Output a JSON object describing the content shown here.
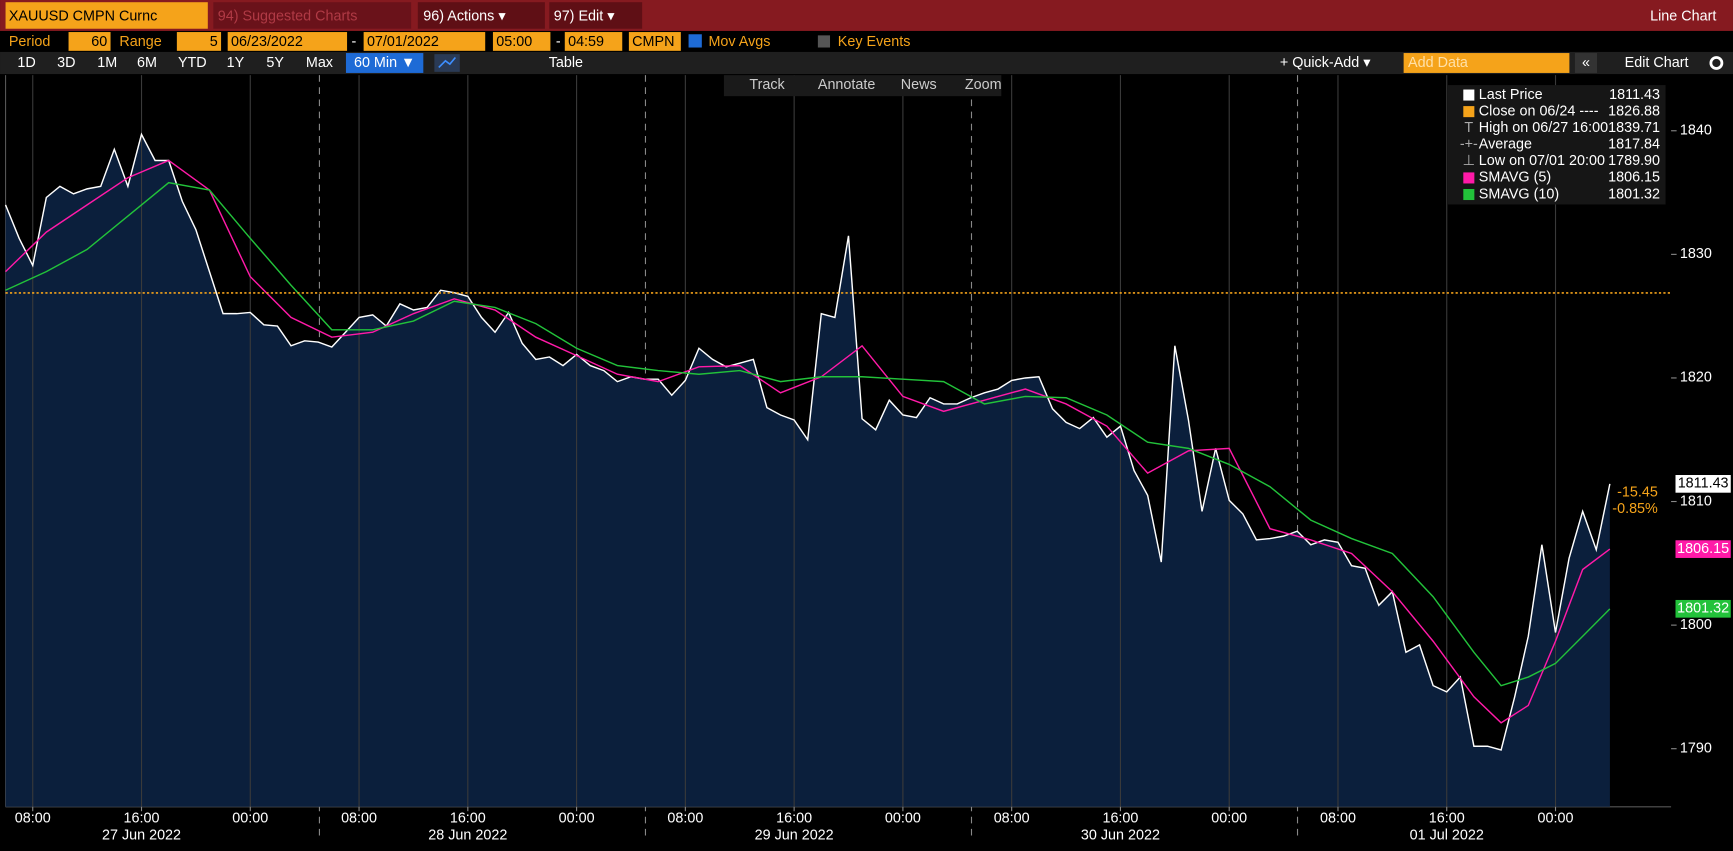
{
  "toolbar": {
    "security": "XAUUSD CMPN Curnc",
    "suggested": "94) Suggested Charts",
    "actions": "96) Actions ▾",
    "edit": "97) Edit ▾",
    "chart_type": "Line Chart",
    "period_label": "Period",
    "period": "60",
    "range_label": "Range",
    "range": "5",
    "start_date": "06/23/2022",
    "end_date": "07/01/2022",
    "separator": "-",
    "start_time": "05:00",
    "end_time": "04:59",
    "source": "CMPN",
    "mov_avgs": "Mov Avgs",
    "key_events": "Key Events",
    "ranges": [
      "1D",
      "3D",
      "1M",
      "6M",
      "YTD",
      "1Y",
      "5Y",
      "Max"
    ],
    "interval": "60 Min ▼",
    "table": "Table",
    "quick_add": "+ Quick-Add ▾",
    "add_data": "Add Data",
    "edit_chart": "Edit Chart",
    "tools": [
      "Track",
      "Annotate",
      "News",
      "Zoom"
    ]
  },
  "chart_data": {
    "type": "line",
    "xlim": [
      0,
      122.5
    ],
    "ylim": [
      1785.3,
      1844.5
    ],
    "yticks": [
      1790,
      1800,
      1810,
      1820,
      1830,
      1840
    ],
    "xticks": [
      {
        "value": 2,
        "label": "08:00"
      },
      {
        "value": 10,
        "label": "16:00"
      },
      {
        "value": 18,
        "label": "00:00"
      },
      {
        "value": 26,
        "label": "08:00"
      },
      {
        "value": 34,
        "label": "16:00"
      },
      {
        "value": 42,
        "label": "00:00"
      },
      {
        "value": 50,
        "label": "08:00"
      },
      {
        "value": 58,
        "label": "16:00"
      },
      {
        "value": 66,
        "label": "00:00"
      },
      {
        "value": 74,
        "label": "08:00"
      },
      {
        "value": 82,
        "label": "16:00"
      },
      {
        "value": 90,
        "label": "00:00"
      },
      {
        "value": 98,
        "label": "08:00"
      },
      {
        "value": 106,
        "label": "16:00"
      },
      {
        "value": 114,
        "label": "00:00"
      }
    ],
    "xdates": [
      {
        "value": 10,
        "label": "27 Jun 2022"
      },
      {
        "value": 34,
        "label": "28 Jun 2022"
      },
      {
        "value": 58,
        "label": "29 Jun 2022"
      },
      {
        "value": 82,
        "label": "30 Jun 2022"
      },
      {
        "value": 106,
        "label": "01 Jul 2022"
      }
    ],
    "series": [
      {
        "name": "Last Price",
        "color": "#ffffff",
        "area": "#0b1f3c",
        "values": [
          1834.0,
          1831.3,
          1829.1,
          1834.6,
          1835.5,
          1834.9,
          1835.3,
          1835.5,
          1838.5,
          1835.5,
          1839.71,
          1837.6,
          1837.6,
          1834.3,
          1832.0,
          1828.6,
          1825.2,
          1825.2,
          1825.3,
          1824.3,
          1824.2,
          1822.6,
          1823.0,
          1822.9,
          1822.5,
          1823.7,
          1824.9,
          1825.1,
          1824.2,
          1826.0,
          1825.5,
          1825.7,
          1827.1,
          1826.9,
          1826.6,
          1824.9,
          1823.7,
          1825.3,
          1822.8,
          1821.5,
          1821.7,
          1821.0,
          1821.9,
          1821.0,
          1820.6,
          1819.7,
          1820.1,
          1819.9,
          1819.9,
          1818.6,
          1819.8,
          1822.4,
          1821.5,
          1820.9,
          1821.2,
          1821.5,
          1817.6,
          1817.0,
          1816.6,
          1815.0,
          1825.2,
          1824.9,
          1831.5,
          1816.7,
          1815.8,
          1818.2,
          1817.0,
          1816.8,
          1818.4,
          1817.9,
          1817.9,
          1818.4,
          1818.8,
          1819.1,
          1819.8,
          1820.0,
          1820.1,
          1817.5,
          1816.4,
          1815.9,
          1816.8,
          1815.2,
          1816.1,
          1812.5,
          1810.5,
          1805.1,
          1822.6,
          1816.6,
          1809.2,
          1814.3,
          1810.1,
          1809.0,
          1806.9,
          1807.0,
          1807.2,
          1807.6,
          1806.5,
          1806.9,
          1806.7,
          1804.8,
          1804.6,
          1801.6,
          1802.7,
          1797.8,
          1798.4,
          1795.1,
          1794.6,
          1795.8,
          1790.2,
          1790.2,
          1789.9,
          1794.2,
          1799.1,
          1806.5,
          1799.4,
          1805.4,
          1809.2,
          1806.1,
          1811.43
        ]
      },
      {
        "name": "SMAVG (5)",
        "color": "#ff1aa8",
        "x": [
          0,
          3,
          6,
          9,
          12,
          15,
          18,
          21,
          24,
          27,
          30,
          33,
          36,
          39,
          42,
          45,
          48,
          51,
          54,
          57,
          60,
          63,
          66,
          69,
          72,
          75,
          78,
          81,
          84,
          87,
          90,
          93,
          96,
          99,
          102,
          105,
          108,
          110,
          112,
          114,
          116,
          118
        ],
        "values": [
          1828.6,
          1831.8,
          1834.0,
          1836.2,
          1837.6,
          1835.2,
          1828.2,
          1824.9,
          1823.3,
          1823.7,
          1825.2,
          1826.4,
          1825.5,
          1823.3,
          1821.8,
          1820.3,
          1819.7,
          1820.9,
          1821.0,
          1818.8,
          1820.1,
          1822.6,
          1818.5,
          1817.3,
          1818.2,
          1819.1,
          1817.9,
          1816.1,
          1812.3,
          1814.1,
          1814.3,
          1807.8,
          1806.9,
          1805.8,
          1802.7,
          1798.7,
          1794.2,
          1792.1,
          1793.5,
          1798.7,
          1804.5,
          1806.15
        ]
      },
      {
        "name": "SMAVG (10)",
        "color": "#22c23a",
        "x": [
          0,
          3,
          6,
          9,
          12,
          15,
          18,
          21,
          24,
          27,
          30,
          33,
          36,
          39,
          42,
          45,
          48,
          51,
          54,
          57,
          60,
          63,
          66,
          69,
          72,
          75,
          78,
          81,
          84,
          87,
          90,
          93,
          96,
          99,
          102,
          105,
          108,
          110,
          112,
          114,
          116,
          118
        ],
        "values": [
          1827.1,
          1828.6,
          1830.4,
          1833.1,
          1835.8,
          1835.2,
          1831.3,
          1827.5,
          1823.9,
          1823.9,
          1824.6,
          1826.2,
          1825.7,
          1824.4,
          1822.4,
          1821.0,
          1820.6,
          1820.3,
          1820.6,
          1819.7,
          1820.1,
          1820.1,
          1819.9,
          1819.7,
          1817.9,
          1818.5,
          1818.4,
          1817.0,
          1814.8,
          1814.3,
          1813.0,
          1811.2,
          1808.5,
          1807.0,
          1805.8,
          1802.3,
          1797.8,
          1795.1,
          1795.8,
          1796.9,
          1799.1,
          1801.32
        ]
      }
    ],
    "stats": [
      {
        "name": "Close on 06/24 ----",
        "value": 1826.88,
        "color": "#f5a31a"
      },
      {
        "name": "High on 06/27 16:00",
        "value": 1839.71
      },
      {
        "name": "Average",
        "value": 1817.84
      },
      {
        "name": "Low on 07/01 20:00",
        "value": 1789.9,
        "label": "1789.90"
      }
    ],
    "change": {
      "value": -15.45,
      "percent": {
        "value": -0.85,
        "label": "-0.85%"
      }
    }
  }
}
